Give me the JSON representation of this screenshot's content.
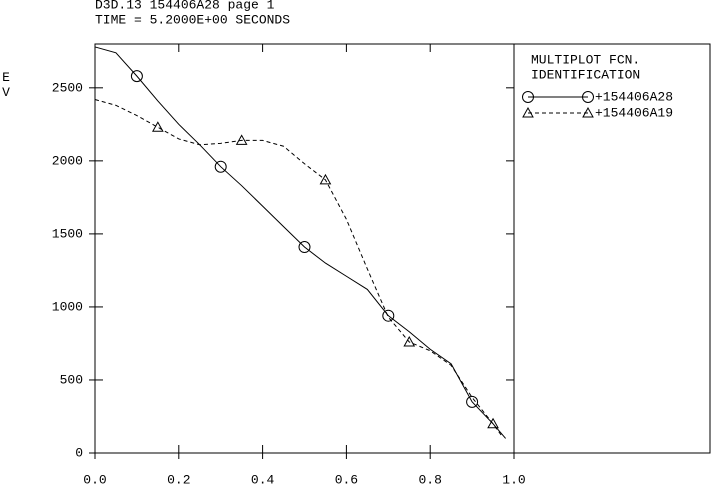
{
  "chart_data": {
    "type": "line",
    "title": "D3D.13 154406A28 page 1",
    "subtitle": "TIME = 5.2000E+00 SECONDS",
    "y_label": "EV",
    "legend_title": [
      "MULTIPLOT FCN.",
      "IDENTIFICATION"
    ],
    "xlim": [
      0,
      1
    ],
    "ylim": [
      0,
      2800
    ],
    "xticks": [
      {
        "value": 0,
        "label": "0.0"
      },
      0.2,
      0.4,
      0.6,
      0.8,
      {
        "value": 1,
        "label": "1.0"
      }
    ],
    "yticks": [
      0,
      500,
      1000,
      1500,
      2000,
      2500
    ],
    "series": [
      {
        "name": "+154406A28",
        "color": "#000000",
        "dash": "solid",
        "marker": "circle",
        "x": [
          0,
          0.05,
          0.1,
          0.15,
          0.2,
          0.25,
          0.3,
          0.35,
          0.4,
          0.45,
          0.5,
          0.55,
          0.6,
          0.65,
          0.7,
          0.75,
          0.8,
          0.85,
          0.9,
          0.95,
          0.98
        ],
        "values": [
          2780,
          2740,
          2580,
          2410,
          2250,
          2110,
          1960,
          1830,
          1690,
          1550,
          1410,
          1300,
          1210,
          1120,
          940,
          830,
          710,
          610,
          350,
          200,
          100
        ]
      },
      {
        "name": "+154406A19",
        "color": "#000000",
        "dash": "dashed",
        "marker": "triangle",
        "x": [
          0,
          0.05,
          0.1,
          0.15,
          0.2,
          0.25,
          0.3,
          0.35,
          0.4,
          0.45,
          0.5,
          0.55,
          0.6,
          0.65,
          0.7,
          0.75,
          0.8,
          0.85,
          0.9,
          0.95,
          0.97
        ],
        "values": [
          2420,
          2380,
          2310,
          2230,
          2150,
          2110,
          2120,
          2140,
          2140,
          2100,
          1980,
          1870,
          1600,
          1260,
          930,
          760,
          700,
          600,
          380,
          200,
          120
        ]
      }
    ]
  }
}
